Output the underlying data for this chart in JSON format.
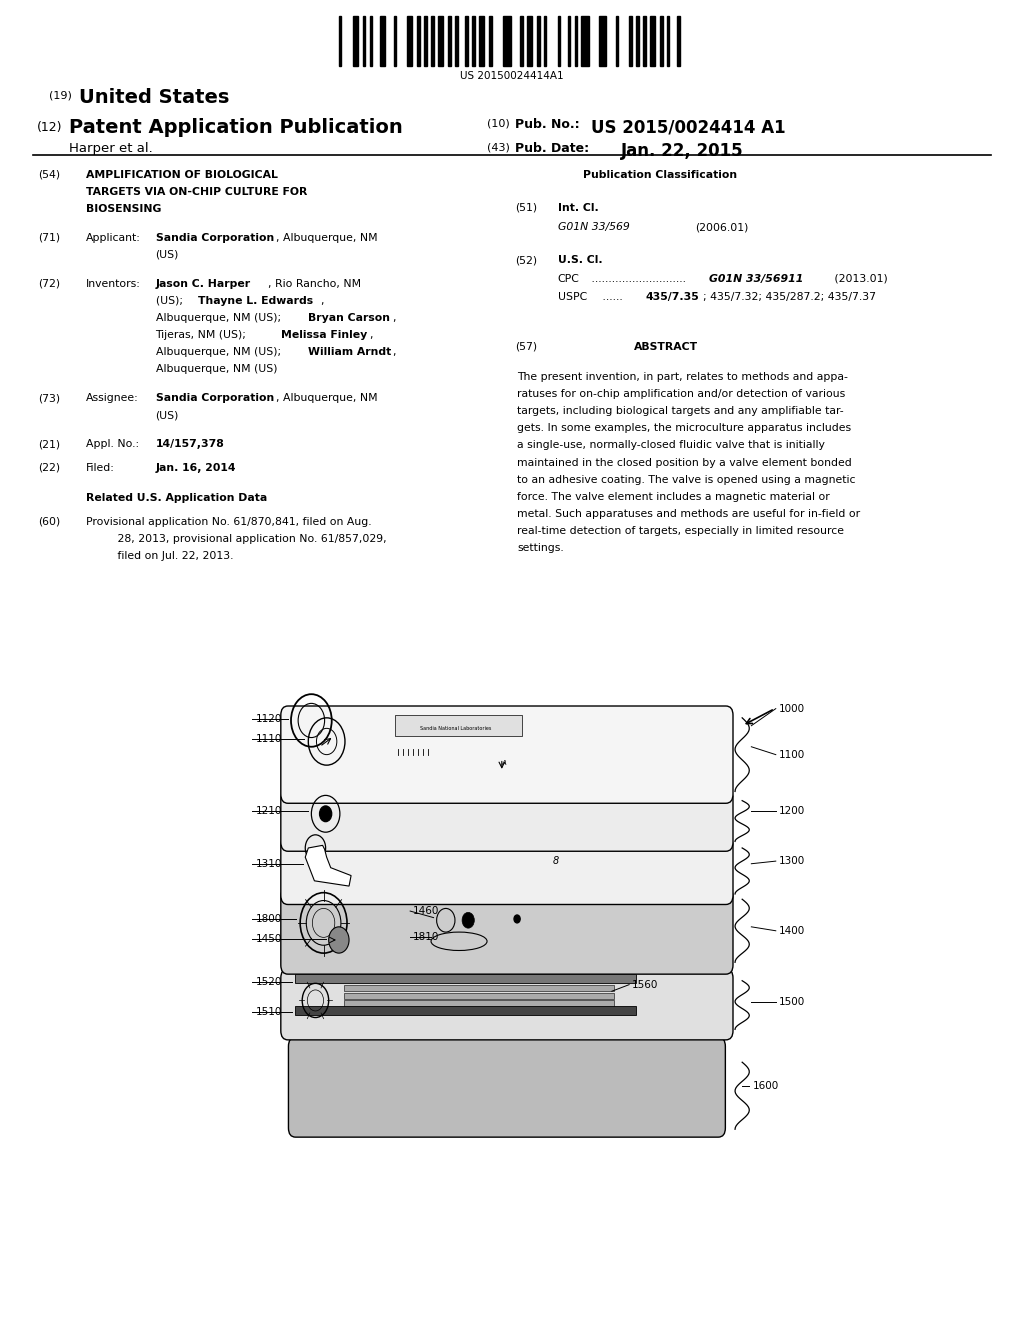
{
  "background_color": "#ffffff",
  "page_width": 10.24,
  "page_height": 13.2,
  "barcode_text": "US 20150024414A1",
  "header": {
    "number19": "(19)",
    "united_states": "United States",
    "number12": "(12)",
    "patent_app": "Patent Application Publication",
    "number10": "(10)",
    "pub_no_label": "Pub. No.:",
    "pub_no_value": "US 2015/0024414 A1",
    "harper": "Harper et al.",
    "number43": "(43)",
    "pub_date_label": "Pub. Date:",
    "pub_date_value": "Jan. 22, 2015"
  },
  "left_col": {
    "title_line1": "AMPLIFICATION OF BIOLOGICAL",
    "title_line2": "TARGETS VIA ON-CHIP CULTURE FOR",
    "title_line3": "BIOSENSING",
    "appl_val": "14/157,378",
    "filed_val": "Jan. 16, 2014",
    "related_header": "Related U.S. Application Data"
  },
  "right_col": {
    "pub_class_header": "Publication Classification",
    "int_cl_val": "G01N 33/569",
    "int_cl_year": "(2006.01)",
    "cpc_val": "G01N 33/56911",
    "cpc_year": "(2013.01)",
    "uspc_bold": "435/7.35",
    "uspc_rest": "; 435/7.32; 435/287.2; 435/7.37",
    "abstract_text": "The present invention, in part, relates to methods and appa-\nratuses for on-chip amplification and/or detection of various\ntargets, including biological targets and any amplifiable tar-\ngets. In some examples, the microculture apparatus includes\na single-use, normally-closed fluidic valve that is initially\nmaintained in the closed position by a valve element bonded\nto an adhesive coating. The valve is opened using a magnetic\nforce. The valve element includes a magnetic material or\nmetal. Such apparatuses and methods are useful for in-field or\nreal-time detection of targets, especially in limited resource\nsettings."
  }
}
